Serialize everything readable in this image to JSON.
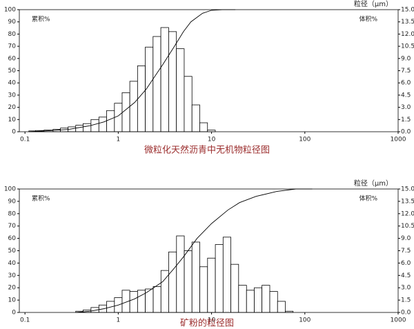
{
  "chart_data": [
    {
      "type": "histogram",
      "title": "微粒化天然沥青中无机物粒径图",
      "x_label": "粒径（μm）",
      "y_label": "累积%",
      "y2_label": "体积%",
      "xscale": "log",
      "xlim": [
        0.087,
        1000
      ],
      "xticks": [
        0.1,
        1,
        10,
        100,
        1000
      ],
      "ylim": [
        0,
        100
      ],
      "yticks": [
        0,
        10,
        20,
        30,
        40,
        50,
        60,
        70,
        80,
        90,
        100
      ],
      "y2lim": [
        0,
        15
      ],
      "y2ticks": [
        {
          "value": 0,
          "label": "0.0"
        },
        1.5,
        {
          "value": 3,
          "label": "3.0"
        },
        4.5,
        {
          "value": 6,
          "label": "6.0"
        },
        7.5,
        {
          "value": 9,
          "label": "9.0"
        },
        10.5,
        {
          "value": 12,
          "label": "12.0"
        },
        13.5,
        {
          "value": 15,
          "label": "15.0"
        }
      ],
      "bins": [
        0.11,
        0.13,
        0.16,
        0.2,
        0.24,
        0.29,
        0.35,
        0.42,
        0.51,
        0.62,
        0.75,
        0.91,
        1.1,
        1.33,
        1.61,
        1.95,
        2.36,
        2.86,
        3.47,
        4.2,
        5.09,
        6.17,
        7.47,
        9.05,
        10.96
      ],
      "values": [
        0.1,
        0.15,
        0.2,
        0.3,
        0.45,
        0.6,
        0.8,
        1.0,
        1.5,
        1.8,
        2.6,
        3.5,
        4.8,
        6.2,
        8.1,
        10.4,
        11.7,
        12.8,
        12.3,
        10.2,
        6.8,
        3.3,
        1.1,
        0.2
      ],
      "cumulative_x": [
        0.11,
        0.2,
        0.3,
        0.5,
        0.7,
        1,
        1.5,
        2,
        3,
        4,
        5,
        6,
        8,
        10,
        13,
        18
      ],
      "cumulative_values": [
        0,
        1,
        2,
        5,
        8,
        13,
        24,
        35,
        55,
        70,
        82,
        90,
        97,
        99.5,
        100,
        100
      ]
    },
    {
      "type": "histogram",
      "title": "矿粉的粒径图",
      "x_label": "粒径（μm）",
      "y_label": "累积%",
      "y2_label": "体积%",
      "xscale": "log",
      "xlim": [
        0.087,
        1000
      ],
      "xticks": [
        0.1,
        1,
        10,
        100,
        1000
      ],
      "ylim": [
        0,
        100
      ],
      "yticks": [
        0,
        10,
        20,
        30,
        40,
        50,
        60,
        70,
        80,
        90,
        100
      ],
      "y2lim": [
        0,
        15
      ],
      "y2ticks": [
        {
          "value": 0,
          "label": "0.0"
        },
        1.5,
        {
          "value": 3,
          "label": "3.0"
        },
        4.5,
        {
          "value": 6,
          "label": "6.0"
        },
        7.5,
        {
          "value": 9,
          "label": "9.0"
        },
        10.5,
        {
          "value": 12,
          "label": "12.0"
        },
        13.5,
        {
          "value": 15,
          "label": "15.0"
        }
      ],
      "bins": [
        0.35,
        0.42,
        0.51,
        0.62,
        0.75,
        0.91,
        1.1,
        1.33,
        1.61,
        1.95,
        2.37,
        2.87,
        3.47,
        4.21,
        5.1,
        6.17,
        7.48,
        9.06,
        10.98,
        13.3,
        16.1,
        19.5,
        23.7,
        28.7,
        34.7,
        42.1,
        51,
        61.8,
        74.8
      ],
      "values": [
        0.15,
        0.3,
        0.6,
        0.9,
        1.35,
        1.8,
        2.7,
        2.55,
        2.7,
        2.85,
        3.15,
        5.1,
        7.35,
        9.3,
        7.5,
        8.55,
        5.55,
        6.6,
        8.25,
        9.15,
        5.85,
        3.3,
        2.7,
        3.0,
        3.3,
        2.55,
        1.35,
        0.15
      ],
      "cumulative_x": [
        0.35,
        0.5,
        0.7,
        1,
        1.5,
        2,
        3,
        4,
        5,
        7,
        10,
        15,
        20,
        30,
        50,
        80,
        120
      ],
      "cumulative_values": [
        0,
        1,
        3,
        6,
        11,
        16,
        25,
        36,
        45,
        60,
        72,
        83,
        89,
        94,
        98,
        100,
        100
      ]
    }
  ]
}
